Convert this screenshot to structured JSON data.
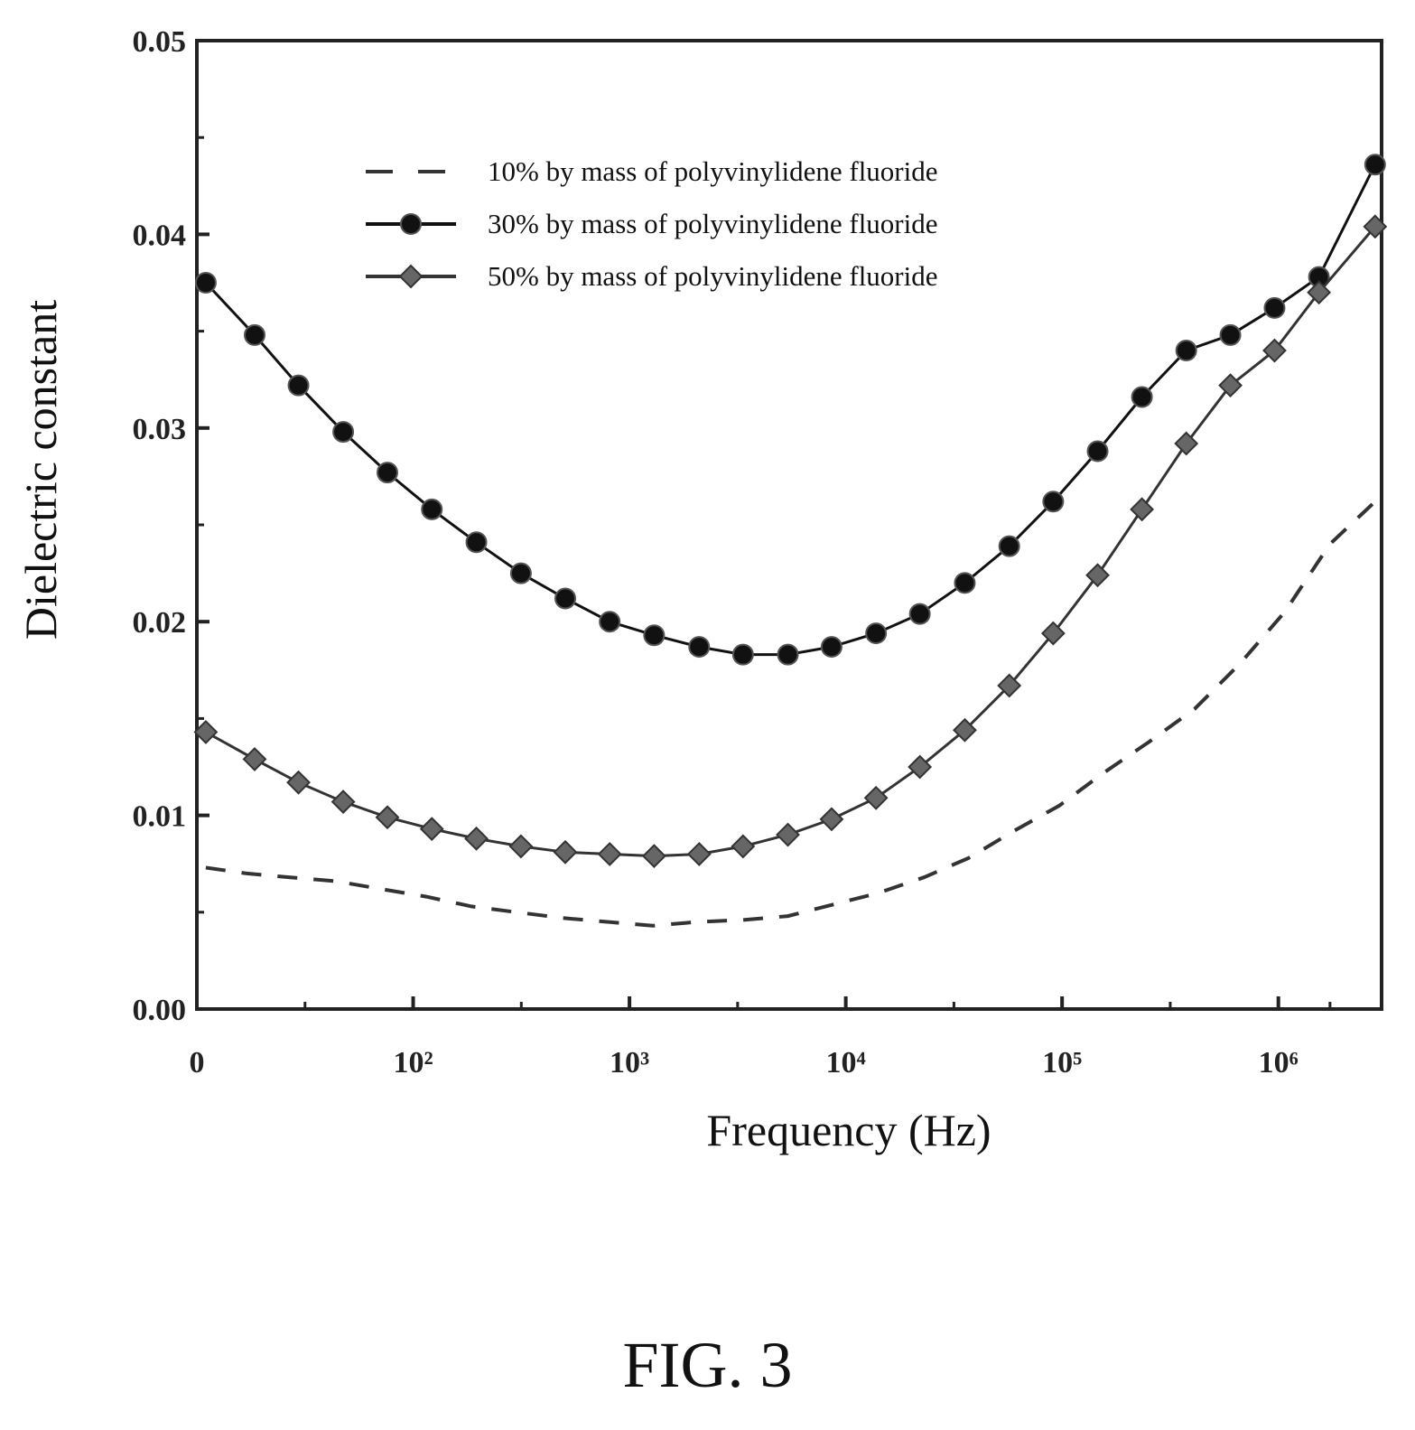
{
  "figure": {
    "caption": "FIG. 3"
  },
  "chart_data": {
    "type": "line",
    "title": "",
    "xlabel": "Frequency (Hz)",
    "ylabel": "Dielectric constant",
    "x_scale": "log",
    "xlim": [
      10,
      3000000
    ],
    "ylim": [
      0,
      0.05
    ],
    "x_ticks": [
      {
        "value": 10,
        "label": "0"
      },
      {
        "value": 100,
        "label": "10²"
      },
      {
        "value": 1000,
        "label": "10³"
      },
      {
        "value": 10000,
        "label": "10⁴"
      },
      {
        "value": 100000,
        "label": "10⁵"
      },
      {
        "value": 1000000,
        "label": "10⁶"
      }
    ],
    "y_ticks": [
      {
        "value": 0,
        "label": "0.00"
      },
      {
        "value": 0.01,
        "label": "0.01"
      },
      {
        "value": 0.02,
        "label": "0.02"
      },
      {
        "value": 0.03,
        "label": "0.03"
      },
      {
        "value": 0.04,
        "label": "0.04"
      },
      {
        "value": 0.05,
        "label": "0.05"
      }
    ],
    "grid": false,
    "legend_position": "top-center",
    "series": [
      {
        "name": "10% by mass of polyvinylidene fluoride",
        "style": "dashed",
        "marker": "none",
        "color": "#333333",
        "x": [
          11,
          17,
          27,
          44,
          71,
          115,
          186,
          300,
          490,
          790,
          1280,
          2070,
          3350,
          5400,
          8800,
          14200,
          23000,
          37000,
          60000,
          97000,
          156000,
          253000,
          410000,
          660000,
          1070000,
          1730000,
          2800000
        ],
        "y": [
          0.0073,
          0.007,
          0.0068,
          0.0066,
          0.0062,
          0.0058,
          0.0053,
          0.005,
          0.0047,
          0.0045,
          0.0043,
          0.0045,
          0.0046,
          0.0048,
          0.0054,
          0.006,
          0.0068,
          0.0078,
          0.0092,
          0.0105,
          0.0122,
          0.0138,
          0.0155,
          0.0178,
          0.0205,
          0.024,
          0.0262
        ]
      },
      {
        "name": "30% by mass of polyvinylidene fluoride",
        "style": "solid",
        "marker": "circle",
        "color": "#111111",
        "x": [
          11,
          18.5,
          29.5,
          47.5,
          76,
          122,
          196,
          315,
          505,
          810,
          1300,
          2100,
          3350,
          5400,
          8600,
          13800,
          22000,
          35500,
          57000,
          91000,
          146000,
          234000,
          375000,
          600000,
          960000,
          1540000,
          2800000
        ],
        "y": [
          0.0375,
          0.0348,
          0.0322,
          0.0298,
          0.0277,
          0.0258,
          0.0241,
          0.0225,
          0.0212,
          0.02,
          0.0193,
          0.0187,
          0.0183,
          0.0183,
          0.0187,
          0.0194,
          0.0204,
          0.022,
          0.0239,
          0.0262,
          0.0288,
          0.0316,
          0.034,
          0.0348,
          0.0362,
          0.0378,
          0.0436
        ]
      },
      {
        "name": "50% by mass of polyvinylidene fluoride",
        "style": "solid",
        "marker": "diamond",
        "color": "#333333",
        "x": [
          11,
          18.5,
          29.5,
          47.5,
          76,
          122,
          196,
          315,
          505,
          810,
          1300,
          2100,
          3350,
          5400,
          8600,
          13800,
          22000,
          35500,
          57000,
          91000,
          146000,
          234000,
          375000,
          600000,
          960000,
          1540000,
          2800000
        ],
        "y": [
          0.0143,
          0.0129,
          0.0117,
          0.0107,
          0.0099,
          0.0093,
          0.0088,
          0.0084,
          0.0081,
          0.008,
          0.0079,
          0.008,
          0.0084,
          0.009,
          0.0098,
          0.0109,
          0.0125,
          0.0144,
          0.0167,
          0.0194,
          0.0224,
          0.0258,
          0.0292,
          0.0322,
          0.034,
          0.037,
          0.0404
        ]
      }
    ]
  }
}
